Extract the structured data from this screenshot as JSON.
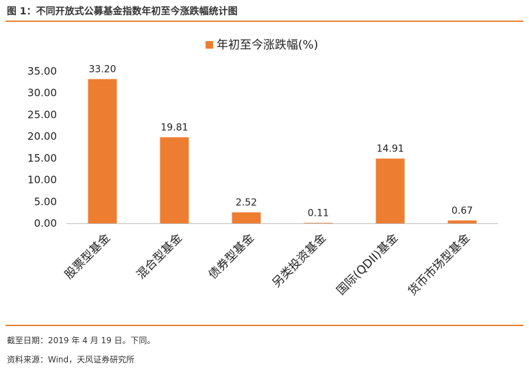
{
  "figure": {
    "title": "图 1：不同开放式公募基金指数年初至今涨跌幅统计图",
    "note_date": "截至日期：2019 年 4 月 19 日。下同。",
    "note_source": "资料来源：Wind，天风证券研究所"
  },
  "colors": {
    "accent": "#e8822f",
    "bar": "#ed7d31"
  },
  "chart_data": {
    "type": "bar",
    "categories": [
      "股票型基金",
      "混合型基金",
      "债券型基金",
      "另类投资基金",
      "国际(QDII)基金",
      "货币市场型基金"
    ],
    "series": [
      {
        "name": "年初至今涨跌幅(%)",
        "values": [
          33.2,
          19.81,
          2.52,
          0.11,
          14.91,
          0.67
        ]
      }
    ],
    "value_labels": [
      "33.20",
      "19.81",
      "2.52",
      "0.11",
      "14.91",
      "0.67"
    ],
    "yticks": [
      "0.00",
      "5.00",
      "10.00",
      "15.00",
      "20.00",
      "25.00",
      "30.00",
      "35.00"
    ],
    "ylim": [
      0,
      35
    ],
    "legend_position": "top",
    "grid": false
  }
}
